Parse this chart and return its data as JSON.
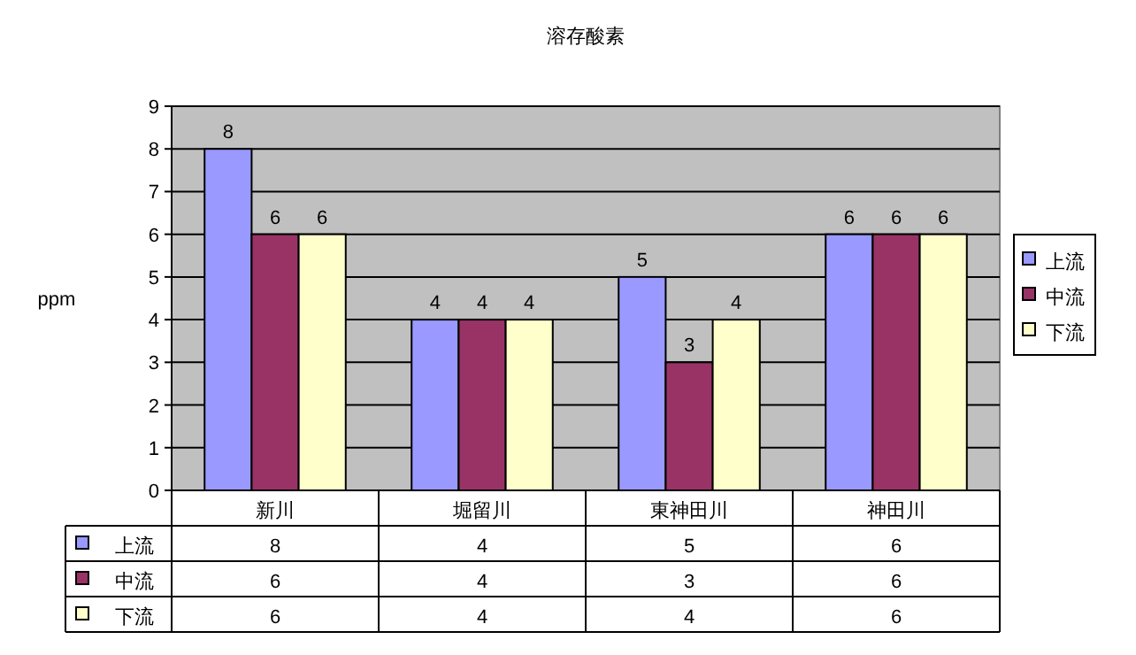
{
  "chart_data": {
    "type": "bar",
    "title": "溶存酸素",
    "ylabel": "ppm",
    "categories": [
      "新川",
      "堀留川",
      "東神田川",
      "神田川"
    ],
    "series": [
      {
        "name": "上流",
        "color": "#9999ff",
        "values": [
          8,
          4,
          5,
          6
        ],
        "value_labels": [
          "8",
          "4",
          "5",
          "6"
        ]
      },
      {
        "name": "中流",
        "color": "#993366",
        "values": [
          6,
          4,
          3,
          6
        ],
        "value_labels": [
          "6",
          "4",
          "3",
          "6"
        ]
      },
      {
        "name": "下流",
        "color": "#ffffcc",
        "values": [
          6,
          4,
          4,
          6
        ],
        "value_labels": [
          "6",
          "4",
          "4",
          "6"
        ]
      }
    ],
    "ylim": [
      0,
      9
    ],
    "yticks": [
      0,
      1,
      2,
      3,
      4,
      5,
      6,
      7,
      8,
      9
    ],
    "annotations": [
      "8",
      "4",
      "5",
      "6",
      "6",
      "4",
      "3",
      "6",
      "6",
      "4",
      "4",
      "6"
    ],
    "grid": "y",
    "legend": "right",
    "data_labels": true
  }
}
